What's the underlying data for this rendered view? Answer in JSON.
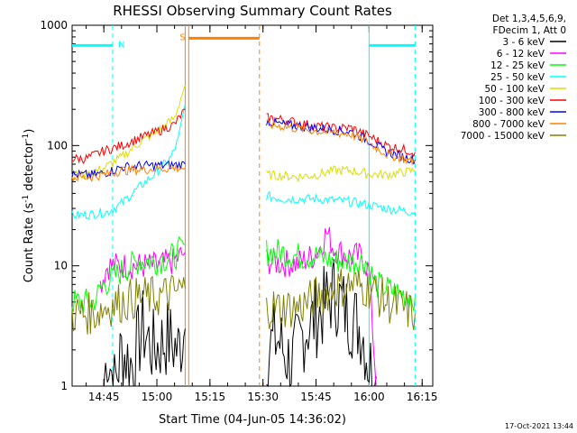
{
  "chart_data": {
    "type": "line",
    "title": "RHESSI Observing Summary Count Rates",
    "xlabel": "Start Time (04-Jun-05 14:36:02)",
    "ylabel_main": "Count Rate (s",
    "ylabel_sup1": "-1",
    "ylabel_mid": " detector",
    "ylabel_sup2": "-1",
    "ylabel_end": ")",
    "yscale": "log",
    "ylim": [
      1,
      1000
    ],
    "xlim": [
      "14:36:02",
      "16:18:00"
    ],
    "yticks": [
      {
        "v": 1,
        "label": "1"
      },
      {
        "v": 10,
        "label": "10"
      },
      {
        "v": 100,
        "label": "100"
      },
      {
        "v": 1000,
        "label": "1000"
      }
    ],
    "xticks": [
      {
        "t": "14:45",
        "label": "14:45"
      },
      {
        "t": "15:00",
        "label": "15:00"
      },
      {
        "t": "15:15",
        "label": "15:15"
      },
      {
        "t": "15:30",
        "label": "15:30"
      },
      {
        "t": "15:45",
        "label": "15:45"
      },
      {
        "t": "16:00",
        "label": "16:00"
      },
      {
        "t": "16:15",
        "label": "16:15"
      }
    ],
    "legend_header": [
      "Det 1,3,4,5,6,9,",
      "FDecim 1, Att 0"
    ],
    "legend_placement": "right",
    "footer": "17-Oct-2021 13:44",
    "series": [
      {
        "name": "3 - 6 keV",
        "color": "#000000",
        "segments": [
          [
            [
              "14:45",
              1
            ],
            [
              "14:46",
              2
            ],
            [
              "14:48",
              1
            ],
            [
              "14:50",
              2
            ],
            [
              "14:53",
              1.5
            ],
            [
              "14:56",
              3
            ],
            [
              "14:59",
              2
            ],
            [
              "15:03",
              2.5
            ],
            [
              "15:06",
              2
            ],
            [
              "15:08",
              3
            ]
          ],
          [
            [
              "15:31",
              2
            ],
            [
              "15:34",
              2.5
            ],
            [
              "15:38",
              1.5
            ],
            [
              "15:42",
              3
            ],
            [
              "15:46",
              4
            ],
            [
              "15:50",
              6
            ],
            [
              "15:54",
              4
            ],
            [
              "15:58",
              3
            ],
            [
              "16:00",
              1.5
            ],
            [
              "16:02",
              1.2
            ]
          ]
        ]
      },
      {
        "name": "6 - 12 keV",
        "color": "#ff00ff",
        "segments": [
          [
            [
              "14:44",
              7
            ],
            [
              "14:46",
              10
            ],
            [
              "14:50",
              10
            ],
            [
              "14:55",
              10
            ],
            [
              "15:00",
              10
            ],
            [
              "15:05",
              11
            ],
            [
              "15:08",
              13
            ]
          ],
          [
            [
              "15:31",
              11
            ],
            [
              "15:35",
              10.5
            ],
            [
              "15:40",
              10.5
            ],
            [
              "15:44",
              12
            ],
            [
              "15:46",
              14
            ],
            [
              "15:48",
              19
            ],
            [
              "15:50",
              14
            ],
            [
              "15:54",
              12
            ],
            [
              "15:58",
              12
            ],
            [
              "16:00",
              9
            ],
            [
              "16:01",
              3
            ],
            [
              "16:02",
              1
            ]
          ]
        ]
      },
      {
        "name": "12 - 25 keV",
        "color": "#00ff00",
        "segments": [
          [
            [
              "14:36",
              5
            ],
            [
              "14:42",
              5
            ],
            [
              "14:45",
              7
            ],
            [
              "14:50",
              9
            ],
            [
              "14:55",
              11
            ],
            [
              "15:00",
              11
            ],
            [
              "15:05",
              12
            ],
            [
              "15:08",
              15
            ]
          ],
          [
            [
              "15:31",
              13
            ],
            [
              "15:35",
              13
            ],
            [
              "15:40",
              12
            ],
            [
              "15:45",
              12
            ],
            [
              "15:50",
              11
            ],
            [
              "15:55",
              11
            ],
            [
              "15:59",
              11
            ],
            [
              "16:02",
              7
            ],
            [
              "16:08",
              6
            ],
            [
              "16:13",
              5.5
            ]
          ]
        ]
      },
      {
        "name": "25 - 50 keV",
        "color": "#00ffff",
        "segments": [
          [
            [
              "14:36",
              26
            ],
            [
              "14:42",
              27
            ],
            [
              "14:46",
              28
            ],
            [
              "14:50",
              33
            ],
            [
              "14:55",
              45
            ],
            [
              "15:00",
              60
            ],
            [
              "15:04",
              80
            ],
            [
              "15:06",
              110
            ],
            [
              "15:08",
              220
            ]
          ],
          [
            [
              "15:31",
              38
            ],
            [
              "15:36",
              36
            ],
            [
              "15:40",
              36
            ],
            [
              "15:45",
              36
            ],
            [
              "15:50",
              35
            ],
            [
              "15:55",
              34
            ],
            [
              "16:00",
              32
            ],
            [
              "16:05",
              30
            ],
            [
              "16:13",
              28
            ]
          ]
        ]
      },
      {
        "name": "50 - 100 keV",
        "color": "#dddd00",
        "segments": [
          [
            [
              "14:36",
              57
            ],
            [
              "14:40",
              57
            ],
            [
              "14:45",
              65
            ],
            [
              "14:50",
              80
            ],
            [
              "14:55",
              105
            ],
            [
              "15:00",
              130
            ],
            [
              "15:05",
              170
            ],
            [
              "15:08",
              320
            ]
          ],
          [
            [
              "15:31",
              57
            ],
            [
              "15:36",
              56
            ],
            [
              "15:40",
              55
            ],
            [
              "15:45",
              57
            ],
            [
              "15:50",
              62
            ],
            [
              "15:55",
              62
            ],
            [
              "16:00",
              58
            ],
            [
              "16:05",
              57
            ],
            [
              "16:13",
              62
            ]
          ]
        ]
      },
      {
        "name": "100 - 300 keV",
        "color": "#ff0000",
        "segments": [
          [
            [
              "14:36",
              78
            ],
            [
              "14:40",
              78
            ],
            [
              "14:45",
              90
            ],
            [
              "14:50",
              100
            ],
            [
              "14:55",
              115
            ],
            [
              "15:00",
              130
            ],
            [
              "15:05",
              150
            ],
            [
              "15:08",
              200
            ]
          ],
          [
            [
              "15:31",
              170
            ],
            [
              "15:35",
              165
            ],
            [
              "15:40",
              155
            ],
            [
              "15:45",
              145
            ],
            [
              "15:50",
              140
            ],
            [
              "15:55",
              140
            ],
            [
              "16:00",
              120
            ],
            [
              "16:05",
              100
            ],
            [
              "16:13",
              88
            ]
          ]
        ]
      },
      {
        "name": "300 - 800 keV",
        "color": "#0000ff",
        "segments": [
          [
            [
              "14:36",
              57
            ],
            [
              "14:42",
              57
            ],
            [
              "14:46",
              60
            ],
            [
              "14:50",
              66
            ],
            [
              "14:55",
              68
            ],
            [
              "15:00",
              68
            ],
            [
              "15:05",
              69
            ],
            [
              "15:08",
              70
            ]
          ],
          [
            [
              "15:31",
              160
            ],
            [
              "15:35",
              150
            ],
            [
              "15:40",
              145
            ],
            [
              "15:45",
              140
            ],
            [
              "15:50",
              135
            ],
            [
              "15:55",
              130
            ],
            [
              "16:00",
              110
            ],
            [
              "16:05",
              88
            ],
            [
              "16:13",
              76
            ]
          ]
        ]
      },
      {
        "name": "800 - 7000 keV",
        "color": "#ff8000",
        "segments": [
          [
            [
              "14:36",
              54
            ],
            [
              "14:42",
              55
            ],
            [
              "14:46",
              58
            ],
            [
              "14:50",
              62
            ],
            [
              "14:55",
              63
            ],
            [
              "15:00",
              64
            ],
            [
              "15:05",
              65
            ],
            [
              "15:08",
              65
            ]
          ],
          [
            [
              "15:31",
              150
            ],
            [
              "15:35",
              145
            ],
            [
              "15:40",
              138
            ],
            [
              "15:45",
              132
            ],
            [
              "15:50",
              128
            ],
            [
              "15:55",
              124
            ],
            [
              "16:00",
              105
            ],
            [
              "16:05",
              85
            ],
            [
              "16:13",
              73
            ]
          ]
        ]
      },
      {
        "name": "7000 - 15000 keV",
        "color": "#808000",
        "segments": [
          [
            [
              "14:36",
              4
            ],
            [
              "14:42",
              4
            ],
            [
              "14:45",
              4.5
            ],
            [
              "14:50",
              5
            ],
            [
              "14:55",
              5.5
            ],
            [
              "15:00",
              5.5
            ],
            [
              "15:05",
              6
            ],
            [
              "15:08",
              6.5
            ]
          ],
          [
            [
              "15:31",
              4.5
            ],
            [
              "15:35",
              4.5
            ],
            [
              "15:40",
              4.5
            ],
            [
              "15:45",
              5.5
            ],
            [
              "15:50",
              6.5
            ],
            [
              "15:55",
              7
            ],
            [
              "16:00",
              6.5
            ],
            [
              "16:05",
              5
            ],
            [
              "16:13",
              4
            ]
          ]
        ]
      }
    ],
    "flags": [
      {
        "label": "N",
        "color": "#00ffff",
        "y": 680,
        "intervals": [
          [
            "14:36:02",
            "14:47:30"
          ],
          [
            "16:00:00",
            "16:13:00"
          ]
        ],
        "dashed_x": [
          "14:47:30",
          "16:13:00"
        ],
        "solid_x": [
          "16:00:00"
        ]
      },
      {
        "label": "S",
        "color": "#ff8000",
        "y": 780,
        "intervals": [
          [
            "15:09:00",
            "15:29:00"
          ]
        ],
        "dashed_x": [
          "15:29:00"
        ],
        "solid_x": [
          "15:08:00",
          "15:09:00"
        ]
      }
    ]
  }
}
